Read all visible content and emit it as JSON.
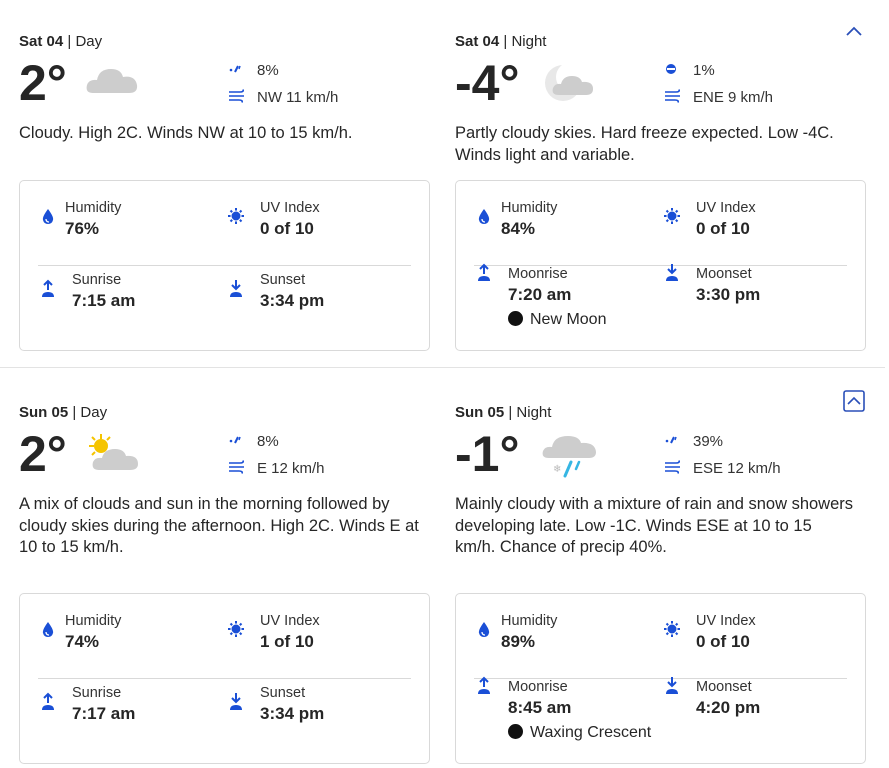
{
  "accent": "#1a4fd6",
  "panels": [
    {
      "day": "Sat 04",
      "period": "Day",
      "temp": "2°",
      "icon": "cloudy-icon",
      "precip": "8%",
      "precip_icon": "precip-icon",
      "wind": "NW 11 km/h",
      "description": "Cloudy. High 2C. Winds NW at 10 to 15 km/h.",
      "humidity_label": "Humidity",
      "humidity": "76%",
      "uv_label": "UV Index",
      "uv": "0 of 10",
      "rise_label": "Sunrise",
      "rise": "7:15 am",
      "set_label": "Sunset",
      "set": "3:34 pm"
    },
    {
      "day": "Sat 04",
      "period": "Night",
      "temp": "-4°",
      "icon": "partly-cloudy-night-icon",
      "precip": "1%",
      "precip_icon": "moon-precip-icon",
      "wind": "ENE 9 km/h",
      "description": "Partly cloudy skies. Hard freeze expected. Low -4C. Winds light and variable.",
      "humidity_label": "Humidity",
      "humidity": "84%",
      "uv_label": "UV Index",
      "uv": "0 of 10",
      "rise_label": "Moonrise",
      "rise": "7:20 am",
      "set_label": "Moonset",
      "set": "3:30 pm",
      "moon_phase": "New Moon"
    },
    {
      "day": "Sun 05",
      "period": "Day",
      "temp": "2°",
      "icon": "partly-sunny-icon",
      "precip": "8%",
      "precip_icon": "precip-icon",
      "wind": "E 12 km/h",
      "description": "A mix of clouds and sun in the morning followed by cloudy skies during the afternoon. High 2C. Winds E at 10 to 15 km/h.",
      "humidity_label": "Humidity",
      "humidity": "74%",
      "uv_label": "UV Index",
      "uv": "1 of 10",
      "rise_label": "Sunrise",
      "rise": "7:17 am",
      "set_label": "Sunset",
      "set": "3:34 pm"
    },
    {
      "day": "Sun 05",
      "period": "Night",
      "temp": "-1°",
      "icon": "rain-snow-icon",
      "precip": "39%",
      "precip_icon": "precip-icon",
      "wind": "ESE 12 km/h",
      "description": "Mainly cloudy with a mixture of rain and snow showers developing late. Low -1C. Winds ESE at 10 to 15 km/h. Chance of precip 40%.",
      "humidity_label": "Humidity",
      "humidity": "89%",
      "uv_label": "UV Index",
      "uv": "0 of 10",
      "rise_label": "Moonrise",
      "rise": "8:45 am",
      "set_label": "Moonset",
      "set": "4:20 pm",
      "moon_phase": "Waxing Crescent"
    }
  ]
}
